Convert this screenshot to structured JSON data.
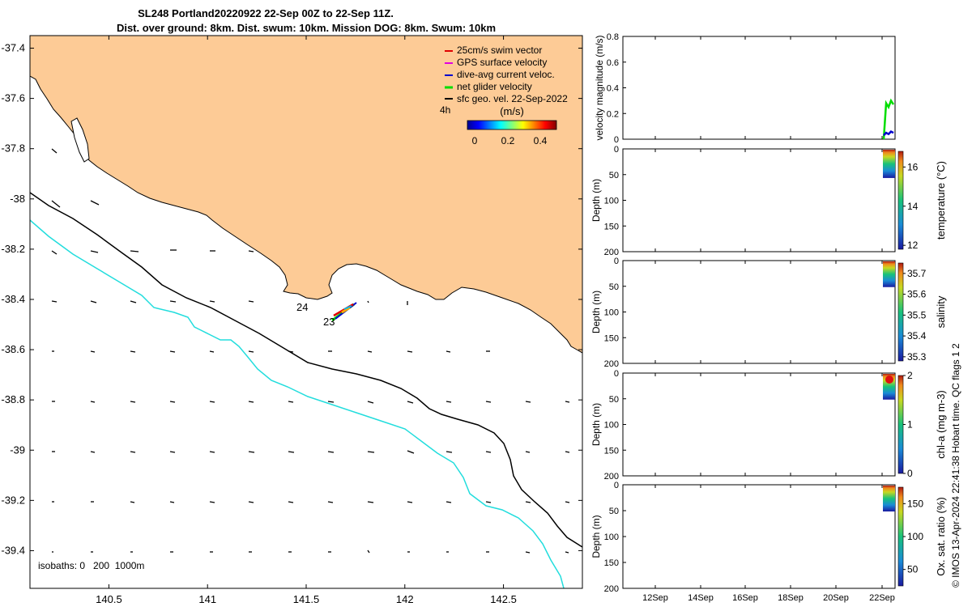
{
  "header": {
    "title_line1": "SL248 Portland20220922 22-Sep 00Z to 22-Sep 11Z.",
    "title_line2": "Dist. over ground: 8km. Dist. swum: 10km. Mission DOG: 8km. Swum: 10km"
  },
  "map": {
    "legend": {
      "items": [
        {
          "label": "25cm/s swim vector",
          "color": "#e00000"
        },
        {
          "label": "GPS surface velocity",
          "color": "#e000e0"
        },
        {
          "label": "dive-avg current veloc.",
          "color": "#0000cc"
        },
        {
          "label": "net glider velocity",
          "color": "#00dd00"
        },
        {
          "label": "sfc geo. vel. 22-Sep-2022",
          "color": "#000000"
        }
      ],
      "time_label": "4h",
      "colorbar_title": "(m/s)",
      "colorbar_ticks": [
        "0",
        "0.2",
        "0.4"
      ]
    },
    "isobaths_label": "isobaths: 0   200  1000m",
    "track_labels": [
      "24",
      "23"
    ],
    "colors": {
      "land": "#fdcb96",
      "sea": "#ffffff",
      "isobath_200": "#000000",
      "isobath_1000": "#22dddd"
    }
  },
  "chart_data": [
    {
      "type": "map",
      "xticks": [
        140.5,
        141,
        141.5,
        142,
        142.5
      ],
      "yticks": [
        -37.4,
        -37.6,
        -37.8,
        -38,
        -38.2,
        -38.4,
        -38.6,
        -38.8,
        -39,
        -39.2,
        -39.4
      ],
      "xlim": [
        140.1,
        142.9
      ],
      "ylim": [
        -39.55,
        -37.35
      ],
      "x_tick_labels": [
        "140.5",
        "141",
        "141.5",
        "142",
        "142.5"
      ],
      "y_tick_labels": [
        "-37.4",
        "-37.6",
        "-37.8",
        "-38",
        "-38.2",
        "-38.4",
        "-38.6",
        "-38.8",
        "-39",
        "-39.2",
        "-39.4"
      ]
    },
    {
      "type": "line",
      "ylabel": "velocity magnitude (m/s)",
      "ylim": [
        0,
        0.8
      ],
      "y_tick_labels": [
        "0",
        "0.2",
        "0.4",
        "0.6",
        "0.8"
      ],
      "x_tick_labels": [
        "12Sep",
        "14Sep",
        "16Sep",
        "18Sep",
        "20Sep",
        "22Sep"
      ],
      "series": [
        {
          "color": "#00dd00",
          "values": [
            0.0,
            0.28,
            0.25,
            0.3,
            0.27
          ]
        },
        {
          "color": "#0000cc",
          "values": [
            0.03,
            0.05,
            0.04,
            0.06,
            0.05
          ]
        }
      ]
    },
    {
      "type": "heatmap",
      "ylabel": "Depth (m)",
      "colorbar_label": "temperature (°C)",
      "ylim": [
        200,
        0
      ],
      "y_tick_labels": [
        "0",
        "50",
        "100",
        "150",
        "200"
      ],
      "colorbar_ticks": [
        "12",
        "14",
        "16"
      ],
      "colorbar_range": [
        11.8,
        16.8
      ],
      "data_depth": [
        0,
        55
      ]
    },
    {
      "type": "heatmap",
      "ylabel": "Depth (m)",
      "colorbar_label": "salinity",
      "ylim": [
        200,
        0
      ],
      "y_tick_labels": [
        "0",
        "50",
        "100",
        "150",
        "200"
      ],
      "colorbar_ticks": [
        "35.3",
        "35.4",
        "35.5",
        "35.6",
        "35.7"
      ],
      "colorbar_range": [
        35.28,
        35.75
      ],
      "data_depth": [
        0,
        50
      ]
    },
    {
      "type": "heatmap",
      "ylabel": "Depth (m)",
      "colorbar_label": "chl-a (mg m-3)",
      "ylim": [
        200,
        0
      ],
      "y_tick_labels": [
        "0",
        "50",
        "100",
        "150",
        "200"
      ],
      "colorbar_ticks": [
        "0",
        "1",
        "2"
      ],
      "colorbar_range": [
        0,
        2
      ],
      "data_depth": [
        0,
        50
      ]
    },
    {
      "type": "heatmap",
      "ylabel": "Depth (m)",
      "colorbar_label": "Ox. sat. ratio (%)",
      "ylim": [
        200,
        0
      ],
      "y_tick_labels": [
        "0",
        "50",
        "100",
        "150",
        "200"
      ],
      "colorbar_ticks": [
        "50",
        "100",
        "150"
      ],
      "colorbar_range": [
        25,
        175
      ],
      "data_depth": [
        0,
        50
      ]
    }
  ],
  "footer": {
    "credit": "© IMOS 13-Apr-2024 22:41:38 Hobart time. QC flags 1  2"
  }
}
